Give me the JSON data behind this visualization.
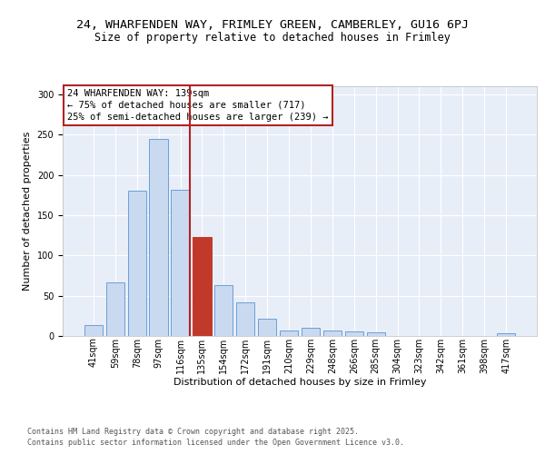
{
  "title1": "24, WHARFENDEN WAY, FRIMLEY GREEN, CAMBERLEY, GU16 6PJ",
  "title2": "Size of property relative to detached houses in Frimley",
  "xlabel": "Distribution of detached houses by size in Frimley",
  "ylabel": "Number of detached properties",
  "bar_labels": [
    "41sqm",
    "59sqm",
    "78sqm",
    "97sqm",
    "116sqm",
    "135sqm",
    "154sqm",
    "172sqm",
    "191sqm",
    "210sqm",
    "229sqm",
    "248sqm",
    "266sqm",
    "285sqm",
    "304sqm",
    "323sqm",
    "342sqm",
    "361sqm",
    "398sqm",
    "417sqm"
  ],
  "bar_values": [
    13,
    67,
    180,
    245,
    182,
    123,
    63,
    42,
    21,
    7,
    10,
    7,
    6,
    5,
    0,
    0,
    0,
    0,
    0,
    3
  ],
  "bar_color": "#c9d9f0",
  "bar_edge_color": "#6a9fd8",
  "highlight_bar_index": 5,
  "highlight_bar_color": "#c0392b",
  "highlight_bar_edge_color": "#c0392b",
  "vline_color": "#b22222",
  "annotation_text": "24 WHARFENDEN WAY: 139sqm\n← 75% of detached houses are smaller (717)\n25% of semi-detached houses are larger (239) →",
  "annotation_box_bg": "#ffffff",
  "annotation_box_edge": "#b22222",
  "ylim": [
    0,
    310
  ],
  "yticks": [
    0,
    50,
    100,
    150,
    200,
    250,
    300
  ],
  "bg_color": "#e8eef8",
  "fig_bg_color": "#ffffff",
  "footer_line1": "Contains HM Land Registry data © Crown copyright and database right 2025.",
  "footer_line2": "Contains public sector information licensed under the Open Government Licence v3.0.",
  "title1_fontsize": 9.5,
  "title2_fontsize": 8.5,
  "axis_label_fontsize": 8,
  "tick_fontsize": 7,
  "annotation_fontsize": 7.5,
  "footer_fontsize": 6
}
